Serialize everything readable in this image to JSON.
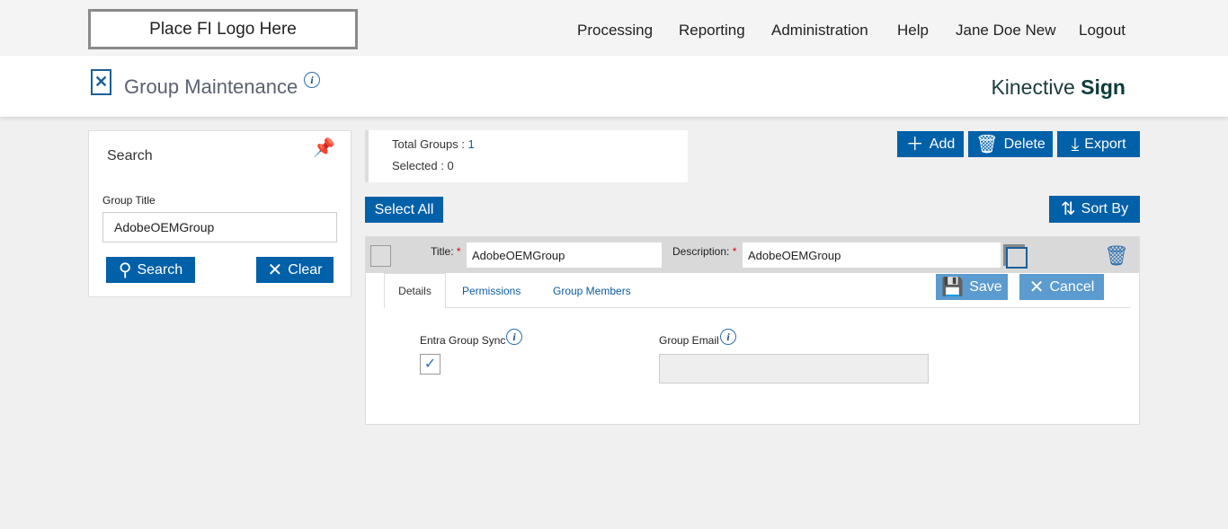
{
  "logo": "Place FI Logo Here",
  "nav": [
    "Processing",
    "Reporting",
    "Administration",
    "Help",
    "Jane Doe New",
    "Logout"
  ],
  "page_title": "Group Maintenance",
  "brand": {
    "light": "Kinective ",
    "bold": "Sign"
  },
  "search": {
    "heading": "Search",
    "group_title_label": "Group Title",
    "group_title_value": "AdobeOEMGroup",
    "search_btn": "Search",
    "clear_btn": "Clear"
  },
  "summary": {
    "total_label": "Total Groups : ",
    "total": "1",
    "selected_label": "Selected : ",
    "selected": "0"
  },
  "toolbar": {
    "add": "Add",
    "delete": "Delete",
    "export": "Export",
    "select_all": "Select All",
    "sort_by": "Sort By"
  },
  "group": {
    "title_label": "Title:",
    "title_value": "AdobeOEMGroup",
    "desc_label": "Description:",
    "desc_value": "AdobeOEMGroup",
    "tabs": [
      "Details",
      "Permissions",
      "Group Members"
    ],
    "save": "Save",
    "cancel": "Cancel",
    "entra_label": "Entra Group Sync",
    "entra_checked": true,
    "email_label": "Group Email",
    "email_value": ""
  },
  "colors": {
    "accent": "#0060a8",
    "accent_light": "#5b9bcf"
  }
}
